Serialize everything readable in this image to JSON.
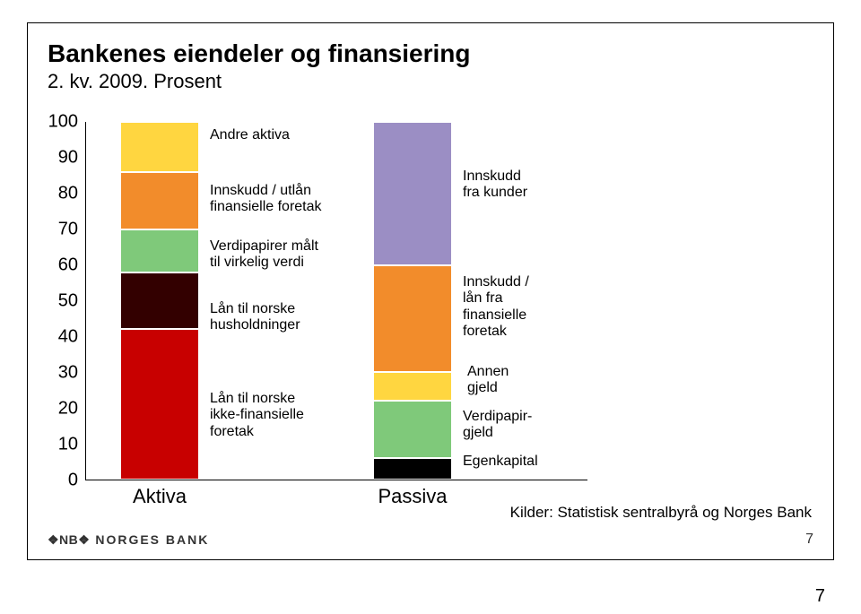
{
  "title": "Bankenes eiendeler og finansiering",
  "subtitle": "2. kv. 2009. Prosent",
  "y_axis": {
    "min": 0,
    "max": 100,
    "step": 10,
    "ticks": [
      0,
      10,
      20,
      30,
      40,
      50,
      60,
      70,
      80,
      90,
      100
    ]
  },
  "chart": {
    "background": "#ffffff",
    "axis_color": "#000000",
    "seg_border": "#ffffff",
    "columns": [
      {
        "key": "aktiva",
        "label": "Aktiva",
        "segments": [
          {
            "key": "laan_ikke_fin",
            "value": 42,
            "color": "#c80000"
          },
          {
            "key": "laan_hush",
            "value": 16,
            "color": "#330000"
          },
          {
            "key": "verdipapirer",
            "value": 12,
            "color": "#7fc97a"
          },
          {
            "key": "innskudd_utlaan_fin",
            "value": 16,
            "color": "#f28c2b"
          },
          {
            "key": "andre_aktiva",
            "value": 14,
            "color": "#ffd640"
          }
        ]
      },
      {
        "key": "passiva",
        "label": "Passiva",
        "segments": [
          {
            "key": "egenkapital",
            "value": 6,
            "color": "#000000"
          },
          {
            "key": "verdipapirgjeld",
            "value": 16,
            "color": "#7fc97a"
          },
          {
            "key": "annen_gjeld",
            "value": 8,
            "color": "#ffd640"
          },
          {
            "key": "innskudd_laan_fin",
            "value": 30,
            "color": "#f28c2b"
          },
          {
            "key": "innskudd_kunder",
            "value": 40,
            "color": "#9b8ec4"
          }
        ]
      }
    ]
  },
  "labels": {
    "andre_aktiva": "Andre  aktiva",
    "innskudd_utlaan_fin_l1": "Innskudd / utlån",
    "innskudd_utlaan_fin_l2": "finansielle foretak",
    "verdipapirer_l1": "Verdipapirer målt",
    "verdipapirer_l2": "til virkelig verdi",
    "laan_hush_l1": "Lån til norske",
    "laan_hush_l2": "husholdninger",
    "laan_ikke_fin_l1": "Lån til norske",
    "laan_ikke_fin_l2": "ikke-finansielle",
    "laan_ikke_fin_l3": "foretak",
    "innskudd_kunder_l1": "Innskudd",
    "innskudd_kunder_l2": "fra kunder",
    "innskudd_laan_fin_l1": "Innskudd /",
    "innskudd_laan_fin_l2": "lån fra",
    "innskudd_laan_fin_l3": "finansielle",
    "innskudd_laan_fin_l4": "foretak",
    "annen_l1": "Annen",
    "annen_l2": "gjeld",
    "verdipapirgjeld_l1": "Verdipapir-",
    "verdipapirgjeld_l2": "gjeld",
    "egenkapital": "Egenkapital"
  },
  "source": "Kilder: Statistisk sentralbyrå og Norges Bank",
  "logo_mark": "❖NB❖",
  "logo_text": "NORGES BANK",
  "slide_number": "7",
  "outer_page": "7"
}
